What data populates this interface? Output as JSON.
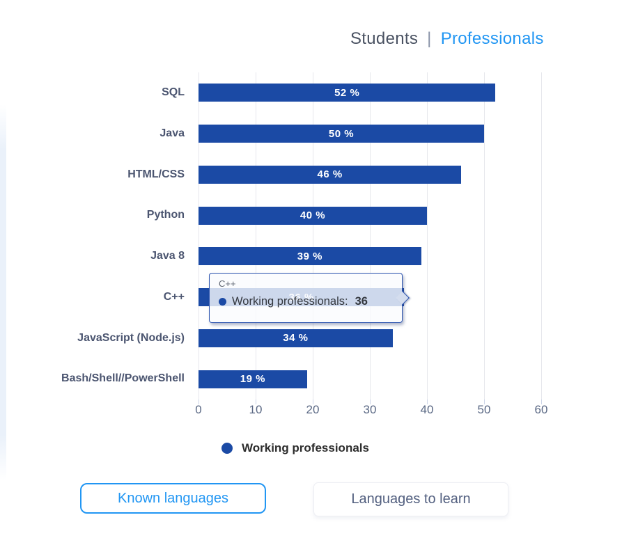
{
  "header": {
    "tab_students": "Students",
    "separator": "|",
    "tab_professionals": "Professionals"
  },
  "chart_data": {
    "type": "bar",
    "orientation": "horizontal",
    "categories": [
      "SQL",
      "Java",
      "HTML/CSS",
      "Python",
      "Java 8",
      "C++",
      "JavaScript (Node.js)",
      "Bash/Shell//PowerShell"
    ],
    "series": [
      {
        "name": "Working professionals",
        "values": [
          52,
          50,
          46,
          40,
          39,
          36,
          34,
          19
        ],
        "labels": [
          "52 %",
          "50 %",
          "46 %",
          "40 %",
          "39 %",
          "36 %",
          "34 %",
          "19 %"
        ],
        "color": "#1b4aa5"
      }
    ],
    "xlim": [
      0,
      65
    ],
    "x_ticks": [
      0,
      10,
      20,
      30,
      40,
      50,
      60
    ],
    "grid": true,
    "legend_position": "bottom"
  },
  "tooltip": {
    "category": "C++",
    "series_label": "Working professionals:",
    "value": "36"
  },
  "legend": {
    "label": "Working professionals",
    "marker_color": "#1b4aa5"
  },
  "buttons": {
    "known": {
      "label": "Known languages"
    },
    "learn": {
      "label": "Languages to learn"
    }
  },
  "colors": {
    "bar": "#1b4aa5",
    "active_tab_blue": "#2196f3",
    "inactive_tab_gray": "#4a5262",
    "category_label": "#4b5570",
    "tick_label": "#5a6884",
    "gridline": "#e6e7ec",
    "legend_text": "#2d2d2d",
    "secondary_button_text": "#525f7f",
    "tooltip_border": "#2a52ae"
  }
}
